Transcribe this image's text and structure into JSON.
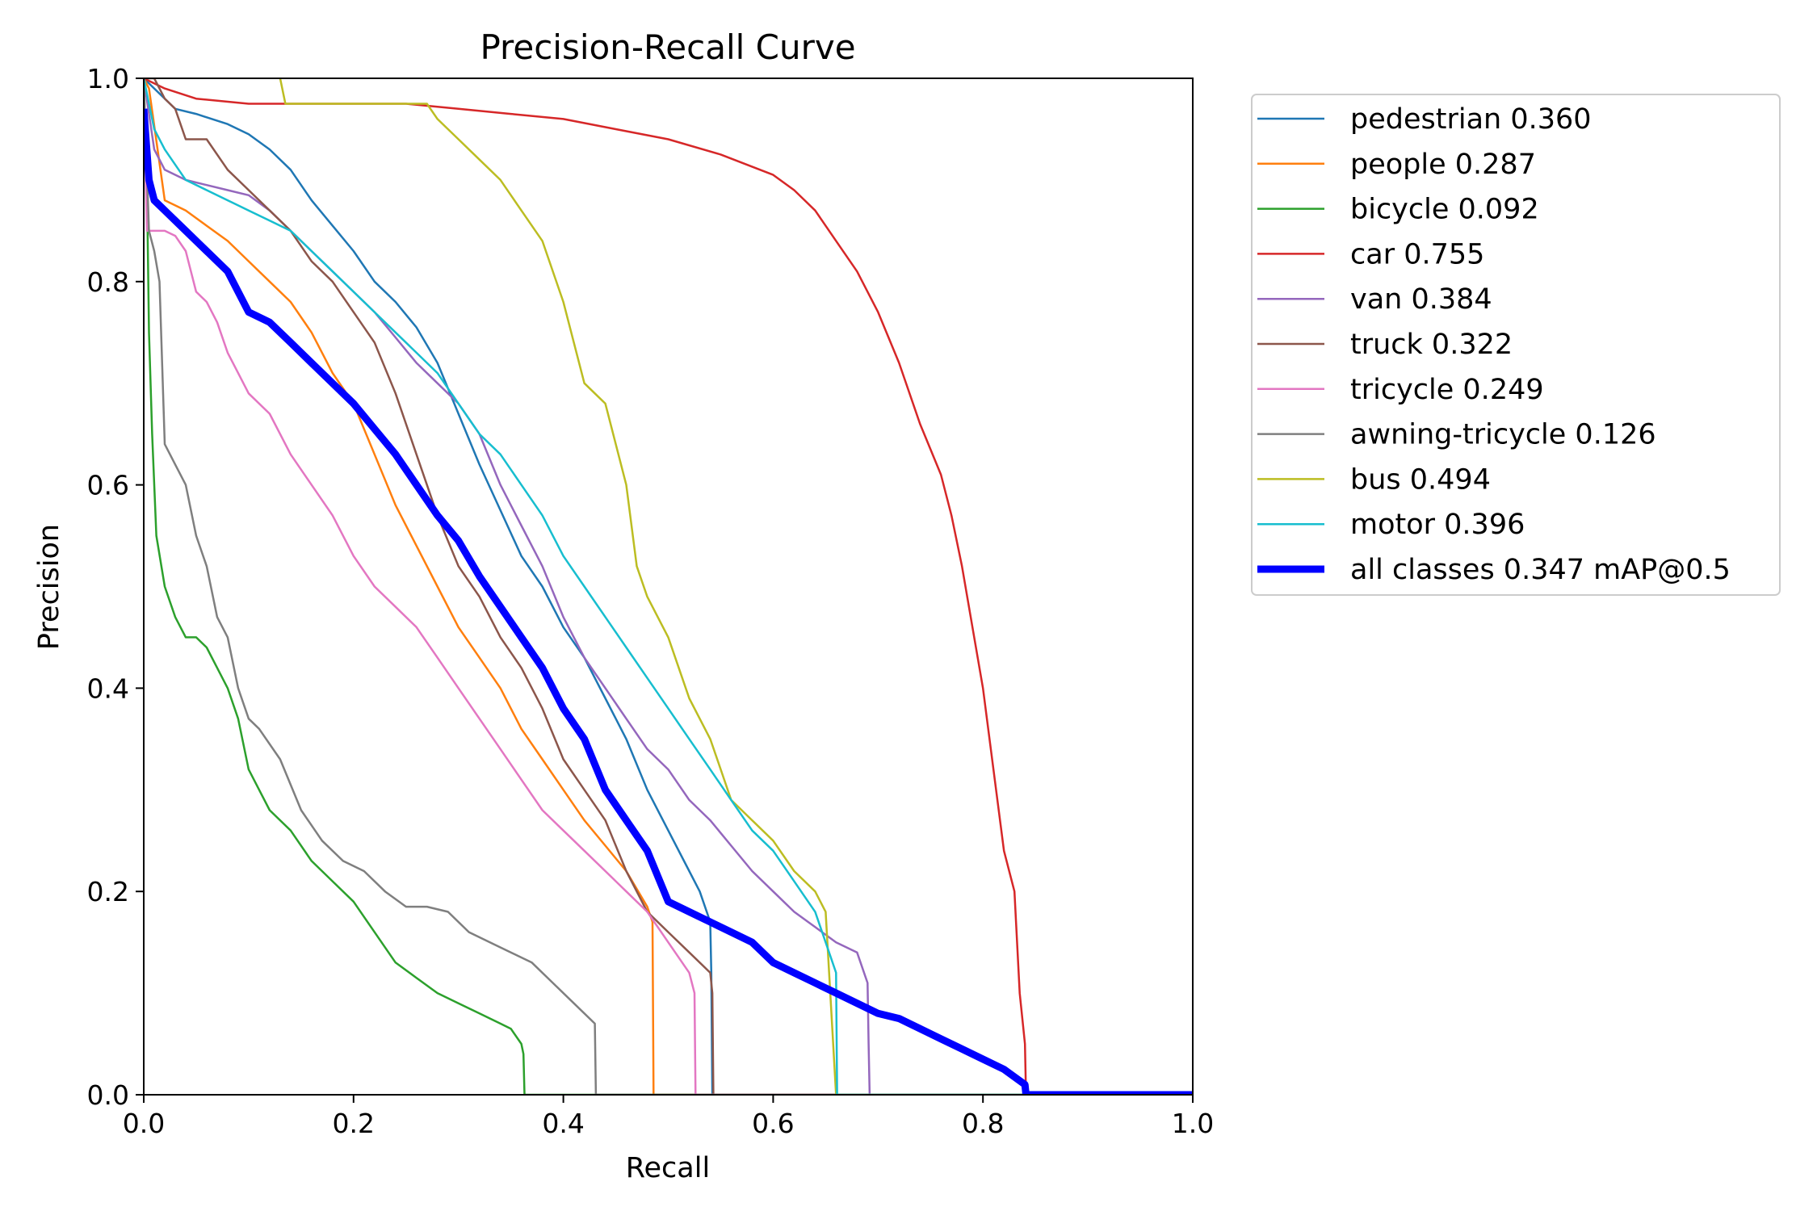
{
  "chart_data": {
    "type": "line",
    "title": "Precision-Recall Curve",
    "xlabel": "Recall",
    "ylabel": "Precision",
    "xlim": [
      0,
      1
    ],
    "ylim": [
      0,
      1
    ],
    "xticks": [
      "0.0",
      "0.2",
      "0.4",
      "0.6",
      "0.8",
      "1.0"
    ],
    "yticks": [
      "0.0",
      "0.2",
      "0.4",
      "0.6",
      "0.8",
      "1.0"
    ],
    "grid": false,
    "legend_position": "outside-right",
    "series": [
      {
        "name": "pedestrian 0.360",
        "color": "#1f77b4",
        "width": 2.5,
        "step": false,
        "x": [
          0,
          0.01,
          0.03,
          0.05,
          0.08,
          0.1,
          0.12,
          0.14,
          0.16,
          0.18,
          0.2,
          0.22,
          0.24,
          0.26,
          0.28,
          0.3,
          0.32,
          0.34,
          0.36,
          0.38,
          0.4,
          0.42,
          0.44,
          0.46,
          0.48,
          0.5,
          0.52,
          0.53,
          0.54,
          0.541,
          0.542,
          1.0
        ],
        "y": [
          1.0,
          0.99,
          0.97,
          0.965,
          0.955,
          0.945,
          0.93,
          0.91,
          0.88,
          0.855,
          0.83,
          0.8,
          0.78,
          0.755,
          0.72,
          0.67,
          0.62,
          0.575,
          0.53,
          0.5,
          0.46,
          0.43,
          0.39,
          0.35,
          0.3,
          0.26,
          0.22,
          0.2,
          0.17,
          0.12,
          0.0,
          0.0
        ]
      },
      {
        "name": "people 0.287",
        "color": "#ff7f0e",
        "width": 2.5,
        "step": false,
        "x": [
          0,
          0.005,
          0.02,
          0.04,
          0.06,
          0.08,
          0.1,
          0.12,
          0.14,
          0.16,
          0.18,
          0.2,
          0.22,
          0.24,
          0.26,
          0.28,
          0.3,
          0.32,
          0.34,
          0.36,
          0.38,
          0.4,
          0.42,
          0.44,
          0.46,
          0.48,
          0.485,
          0.486,
          1.0
        ],
        "y": [
          1.0,
          0.99,
          0.88,
          0.87,
          0.855,
          0.84,
          0.82,
          0.8,
          0.78,
          0.75,
          0.71,
          0.68,
          0.63,
          0.58,
          0.54,
          0.5,
          0.46,
          0.43,
          0.4,
          0.36,
          0.33,
          0.3,
          0.27,
          0.245,
          0.22,
          0.185,
          0.17,
          0.0,
          0.0
        ]
      },
      {
        "name": "bicycle 0.092",
        "color": "#2ca02c",
        "width": 2.5,
        "step": false,
        "x": [
          0,
          0.003,
          0.005,
          0.008,
          0.012,
          0.02,
          0.03,
          0.04,
          0.05,
          0.06,
          0.07,
          0.08,
          0.09,
          0.1,
          0.11,
          0.12,
          0.14,
          0.16,
          0.18,
          0.2,
          0.22,
          0.24,
          0.26,
          0.28,
          0.3,
          0.32,
          0.34,
          0.35,
          0.36,
          0.362,
          0.363,
          1.0
        ],
        "y": [
          1.0,
          0.9,
          0.75,
          0.65,
          0.55,
          0.5,
          0.47,
          0.45,
          0.45,
          0.44,
          0.42,
          0.4,
          0.37,
          0.32,
          0.3,
          0.28,
          0.26,
          0.23,
          0.21,
          0.19,
          0.16,
          0.13,
          0.115,
          0.1,
          0.09,
          0.08,
          0.07,
          0.065,
          0.05,
          0.04,
          0.0,
          0.0
        ]
      },
      {
        "name": "car 0.755",
        "color": "#d62728",
        "width": 2.5,
        "step": false,
        "x": [
          0,
          0.02,
          0.05,
          0.1,
          0.15,
          0.2,
          0.25,
          0.3,
          0.35,
          0.4,
          0.45,
          0.5,
          0.55,
          0.6,
          0.62,
          0.64,
          0.66,
          0.68,
          0.7,
          0.72,
          0.74,
          0.76,
          0.77,
          0.78,
          0.79,
          0.8,
          0.81,
          0.82,
          0.83,
          0.835,
          0.84,
          0.841,
          1.0
        ],
        "y": [
          1.0,
          0.99,
          0.98,
          0.975,
          0.975,
          0.975,
          0.975,
          0.97,
          0.965,
          0.96,
          0.95,
          0.94,
          0.925,
          0.905,
          0.89,
          0.87,
          0.84,
          0.81,
          0.77,
          0.72,
          0.66,
          0.61,
          0.57,
          0.52,
          0.46,
          0.4,
          0.32,
          0.24,
          0.2,
          0.1,
          0.05,
          0.0,
          0.0
        ]
      },
      {
        "name": "van 0.384",
        "color": "#9467bd",
        "width": 2.5,
        "step": false,
        "x": [
          0,
          0.01,
          0.02,
          0.04,
          0.06,
          0.08,
          0.1,
          0.12,
          0.14,
          0.16,
          0.18,
          0.2,
          0.22,
          0.24,
          0.26,
          0.28,
          0.3,
          0.32,
          0.34,
          0.36,
          0.38,
          0.4,
          0.42,
          0.44,
          0.46,
          0.48,
          0.5,
          0.52,
          0.54,
          0.56,
          0.58,
          0.6,
          0.62,
          0.64,
          0.66,
          0.68,
          0.69,
          0.691,
          0.692,
          1.0
        ],
        "y": [
          1.0,
          0.93,
          0.91,
          0.9,
          0.895,
          0.89,
          0.885,
          0.87,
          0.85,
          0.83,
          0.81,
          0.79,
          0.77,
          0.745,
          0.72,
          0.7,
          0.68,
          0.65,
          0.6,
          0.56,
          0.52,
          0.47,
          0.43,
          0.4,
          0.37,
          0.34,
          0.32,
          0.29,
          0.27,
          0.245,
          0.22,
          0.2,
          0.18,
          0.165,
          0.15,
          0.14,
          0.11,
          0.05,
          0.0,
          0.0
        ]
      },
      {
        "name": "truck 0.322",
        "color": "#8c564b",
        "width": 2.5,
        "step": false,
        "x": [
          0,
          0.01,
          0.02,
          0.03,
          0.04,
          0.06,
          0.08,
          0.1,
          0.12,
          0.14,
          0.16,
          0.18,
          0.2,
          0.22,
          0.24,
          0.26,
          0.28,
          0.3,
          0.32,
          0.34,
          0.36,
          0.38,
          0.4,
          0.42,
          0.44,
          0.46,
          0.48,
          0.5,
          0.52,
          0.54,
          0.542,
          0.543,
          1.0
        ],
        "y": [
          1.0,
          1.0,
          0.98,
          0.97,
          0.94,
          0.94,
          0.91,
          0.89,
          0.87,
          0.85,
          0.82,
          0.8,
          0.77,
          0.74,
          0.69,
          0.63,
          0.57,
          0.52,
          0.49,
          0.45,
          0.42,
          0.38,
          0.33,
          0.3,
          0.27,
          0.22,
          0.18,
          0.16,
          0.14,
          0.12,
          0.1,
          0.0,
          0.0
        ]
      },
      {
        "name": "tricycle 0.249",
        "color": "#e377c2",
        "width": 2.5,
        "step": false,
        "x": [
          0,
          0.003,
          0.01,
          0.02,
          0.03,
          0.04,
          0.05,
          0.06,
          0.07,
          0.08,
          0.09,
          0.1,
          0.12,
          0.14,
          0.16,
          0.18,
          0.2,
          0.22,
          0.24,
          0.26,
          0.28,
          0.3,
          0.32,
          0.34,
          0.36,
          0.38,
          0.4,
          0.42,
          0.44,
          0.46,
          0.48,
          0.5,
          0.52,
          0.525,
          0.526,
          1.0
        ],
        "y": [
          1.0,
          0.85,
          0.85,
          0.85,
          0.845,
          0.83,
          0.79,
          0.78,
          0.76,
          0.73,
          0.71,
          0.69,
          0.67,
          0.63,
          0.6,
          0.57,
          0.53,
          0.5,
          0.48,
          0.46,
          0.43,
          0.4,
          0.37,
          0.34,
          0.31,
          0.28,
          0.26,
          0.24,
          0.22,
          0.2,
          0.18,
          0.15,
          0.12,
          0.1,
          0.0,
          0.0
        ]
      },
      {
        "name": "awning-tricycle 0.126",
        "color": "#7f7f7f",
        "width": 2.5,
        "step": false,
        "x": [
          0,
          0.005,
          0.01,
          0.015,
          0.02,
          0.03,
          0.04,
          0.05,
          0.06,
          0.07,
          0.08,
          0.09,
          0.1,
          0.11,
          0.13,
          0.15,
          0.17,
          0.19,
          0.21,
          0.23,
          0.25,
          0.27,
          0.29,
          0.31,
          0.33,
          0.35,
          0.37,
          0.39,
          0.41,
          0.43,
          0.431,
          1.0
        ],
        "y": [
          1.0,
          0.85,
          0.83,
          0.8,
          0.64,
          0.62,
          0.6,
          0.55,
          0.52,
          0.47,
          0.45,
          0.4,
          0.37,
          0.36,
          0.33,
          0.28,
          0.25,
          0.23,
          0.22,
          0.2,
          0.185,
          0.185,
          0.18,
          0.16,
          0.15,
          0.14,
          0.13,
          0.11,
          0.09,
          0.07,
          0.0,
          0.0
        ]
      },
      {
        "name": "bus 0.494",
        "color": "#bcbd22",
        "width": 2.5,
        "step": false,
        "x": [
          0.13,
          0.135,
          0.2,
          0.27,
          0.28,
          0.3,
          0.32,
          0.34,
          0.36,
          0.38,
          0.4,
          0.41,
          0.42,
          0.43,
          0.44,
          0.46,
          0.47,
          0.48,
          0.5,
          0.51,
          0.52,
          0.54,
          0.55,
          0.56,
          0.58,
          0.6,
          0.62,
          0.64,
          0.65,
          0.66,
          0.661,
          1.0
        ],
        "y": [
          1.0,
          0.975,
          0.975,
          0.975,
          0.96,
          0.94,
          0.92,
          0.9,
          0.87,
          0.84,
          0.78,
          0.74,
          0.7,
          0.69,
          0.68,
          0.6,
          0.52,
          0.49,
          0.45,
          0.42,
          0.39,
          0.35,
          0.32,
          0.29,
          0.27,
          0.25,
          0.22,
          0.2,
          0.18,
          0.0,
          0.0,
          0.0
        ]
      },
      {
        "name": "motor 0.396",
        "color": "#17becf",
        "width": 2.5,
        "step": false,
        "x": [
          0,
          0.01,
          0.02,
          0.04,
          0.06,
          0.08,
          0.1,
          0.12,
          0.14,
          0.16,
          0.18,
          0.2,
          0.22,
          0.24,
          0.26,
          0.28,
          0.3,
          0.32,
          0.34,
          0.36,
          0.38,
          0.4,
          0.42,
          0.44,
          0.46,
          0.48,
          0.5,
          0.52,
          0.54,
          0.56,
          0.58,
          0.6,
          0.62,
          0.64,
          0.65,
          0.66,
          0.661,
          1.0
        ],
        "y": [
          1.0,
          0.95,
          0.93,
          0.9,
          0.89,
          0.88,
          0.87,
          0.86,
          0.85,
          0.83,
          0.81,
          0.79,
          0.77,
          0.75,
          0.73,
          0.71,
          0.68,
          0.65,
          0.63,
          0.6,
          0.57,
          0.53,
          0.5,
          0.47,
          0.44,
          0.41,
          0.38,
          0.35,
          0.32,
          0.29,
          0.26,
          0.24,
          0.21,
          0.18,
          0.15,
          0.12,
          0.0,
          0.0
        ]
      },
      {
        "name": "all classes 0.347 mAP@0.5",
        "color": "#0000ff",
        "width": 9,
        "step": false,
        "x": [
          0,
          0.005,
          0.01,
          0.02,
          0.04,
          0.06,
          0.08,
          0.1,
          0.12,
          0.14,
          0.16,
          0.18,
          0.2,
          0.22,
          0.24,
          0.26,
          0.28,
          0.3,
          0.32,
          0.34,
          0.36,
          0.38,
          0.4,
          0.42,
          0.44,
          0.46,
          0.48,
          0.5,
          0.52,
          0.54,
          0.56,
          0.58,
          0.6,
          0.62,
          0.64,
          0.66,
          0.68,
          0.7,
          0.72,
          0.74,
          0.76,
          0.78,
          0.8,
          0.82,
          0.84,
          0.841,
          1.0
        ],
        "y": [
          0.97,
          0.9,
          0.88,
          0.87,
          0.85,
          0.83,
          0.81,
          0.77,
          0.76,
          0.74,
          0.72,
          0.7,
          0.68,
          0.655,
          0.63,
          0.6,
          0.57,
          0.545,
          0.51,
          0.48,
          0.45,
          0.42,
          0.38,
          0.35,
          0.3,
          0.27,
          0.24,
          0.19,
          0.18,
          0.17,
          0.16,
          0.15,
          0.13,
          0.12,
          0.11,
          0.1,
          0.09,
          0.08,
          0.075,
          0.065,
          0.055,
          0.045,
          0.035,
          0.025,
          0.01,
          0.0,
          0.0
        ]
      }
    ]
  }
}
